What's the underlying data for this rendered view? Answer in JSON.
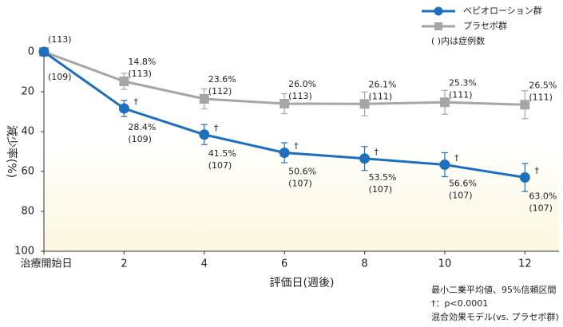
{
  "chart_data": {
    "type": "line",
    "x_label": "評価日(週後)",
    "y_label": "減少率(%)",
    "x": [
      0,
      2,
      4,
      6,
      8,
      10,
      12
    ],
    "xlim": [
      0,
      12.85
    ],
    "xticks": [
      {
        "value": 0,
        "label": "治療開始日"
      },
      2,
      4,
      6,
      8,
      10,
      12
    ],
    "ylim": [
      0,
      100
    ],
    "yticks": [
      0,
      20,
      40,
      60,
      80,
      100
    ],
    "y_inverted": true,
    "series": [
      {
        "name": "プラセボ群",
        "color": "#a6a6a6",
        "marker": "square",
        "values": [
          0,
          14.8,
          23.6,
          26.0,
          26.1,
          25.3,
          26.5
        ],
        "errors": [
          null,
          4,
          5,
          5,
          6,
          6,
          7
        ],
        "value_labels": [
          null,
          "14.8%",
          "23.6%",
          "26.0%",
          "26.1%",
          "25.3%",
          "26.5%"
        ],
        "n_labels": [
          "(113)",
          "(113)",
          "(112)",
          "(113)",
          "(111)",
          "(111)",
          "(111)"
        ],
        "significance": [
          null,
          null,
          null,
          null,
          null,
          null,
          null
        ]
      },
      {
        "name": "ベピオローション群",
        "color": "#1f6fbf",
        "marker": "circle",
        "values": [
          0,
          28.4,
          41.5,
          50.6,
          53.5,
          56.6,
          63.0
        ],
        "errors": [
          null,
          4,
          5,
          5,
          6,
          6,
          7
        ],
        "value_labels": [
          null,
          "28.4%",
          "41.5%",
          "50.6%",
          "53.5%",
          "56.6%",
          "63.0%"
        ],
        "n_labels": [
          "(109)",
          "(109)",
          "(107)",
          "(107)",
          "(107)",
          "(107)",
          "(107)"
        ],
        "significance": [
          null,
          "†",
          "†",
          "†",
          "†",
          "†",
          "†"
        ]
      }
    ],
    "legend_note": "( )内は症例数",
    "notes": [
      "最小二乗平均値、95%信頼区間",
      "†：p<0.0001",
      "混合効果モデル(vs. プラセボ群)"
    ]
  }
}
